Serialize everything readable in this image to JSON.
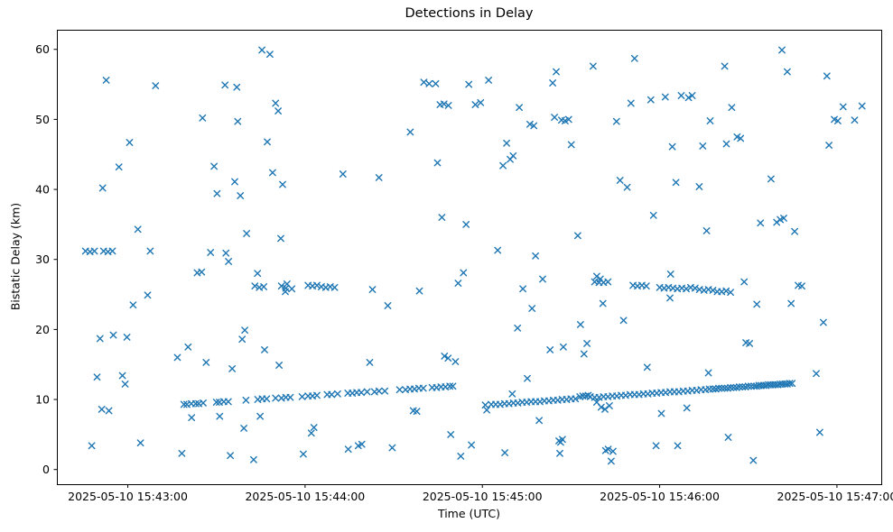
{
  "chart_data": {
    "type": "scatter",
    "title": "Detections in Delay",
    "xlabel": "Time (UTC)",
    "ylabel": "Bistatic Delay (km)",
    "marker": "x",
    "marker_color": "#1f77b4",
    "grid": false,
    "legend": false,
    "x_unit": "seconds after 2025-05-10 15:42:00 UTC",
    "xlim": [
      36,
      315
    ],
    "ylim": [
      -2.1,
      62.8
    ],
    "x_ticks": [
      {
        "value": 60,
        "label": "2025-05-10 15:43:00"
      },
      {
        "value": 120,
        "label": "2025-05-10 15:44:00"
      },
      {
        "value": 180,
        "label": "2025-05-10 15:45:00"
      },
      {
        "value": 240,
        "label": "2025-05-10 15:46:00"
      },
      {
        "value": 300,
        "label": "2025-05-10 15:47:00"
      }
    ],
    "y_ticks": [
      0,
      10,
      20,
      30,
      40,
      50,
      60
    ],
    "points": [
      [
        45.7,
        31.2
      ],
      [
        47.2,
        31.1
      ],
      [
        48.7,
        31.2
      ],
      [
        51.8,
        31.2
      ],
      [
        53.3,
        31.1
      ],
      [
        54.8,
        31.2
      ],
      [
        83.5,
        28.1
      ],
      [
        85,
        28.2
      ],
      [
        103,
        26.2
      ],
      [
        104.5,
        26.0
      ],
      [
        106,
        26.1
      ],
      [
        112,
        26.2
      ],
      [
        113.5,
        25.9
      ],
      [
        115.5,
        25.8
      ],
      [
        121,
        26.3
      ],
      [
        122.5,
        26.2
      ],
      [
        124,
        26.3
      ],
      [
        125.5,
        26.1
      ],
      [
        127,
        26.0
      ],
      [
        128.5,
        26.1
      ],
      [
        130,
        26.0
      ],
      [
        218,
        26.8
      ],
      [
        219.5,
        26.7
      ],
      [
        221,
        26.7
      ],
      [
        222.5,
        26.8
      ],
      [
        231,
        26.3
      ],
      [
        232.5,
        26.2
      ],
      [
        234,
        26.3
      ],
      [
        235.5,
        26.2
      ],
      [
        240,
        26.0
      ],
      [
        241.5,
        25.9
      ],
      [
        243,
        26.0
      ],
      [
        244.5,
        25.9
      ],
      [
        246,
        25.8
      ],
      [
        247.5,
        25.9
      ],
      [
        249,
        25.8
      ],
      [
        250.5,
        26.0
      ],
      [
        252,
        25.9
      ],
      [
        253.5,
        25.7
      ],
      [
        255,
        25.6
      ],
      [
        256.5,
        25.7
      ],
      [
        258,
        25.6
      ],
      [
        259.5,
        25.4
      ],
      [
        261,
        25.4
      ],
      [
        262.5,
        25.5
      ],
      [
        264,
        25.3
      ],
      [
        243.5,
        24.5
      ],
      [
        286.9,
        26.3
      ],
      [
        288.1,
        26.2
      ],
      [
        79,
        9.3
      ],
      [
        80,
        9.3
      ],
      [
        81.5,
        9.4
      ],
      [
        83,
        9.4
      ],
      [
        84,
        9.4
      ],
      [
        85.5,
        9.5
      ],
      [
        90,
        9.6
      ],
      [
        91,
        9.6
      ],
      [
        92.5,
        9.7
      ],
      [
        94,
        9.7
      ],
      [
        100,
        9.9
      ],
      [
        104,
        10.0
      ],
      [
        105.5,
        10.1
      ],
      [
        107,
        10.1
      ],
      [
        110,
        10.2
      ],
      [
        112,
        10.2
      ],
      [
        113.5,
        10.3
      ],
      [
        115,
        10.3
      ],
      [
        119,
        10.4
      ],
      [
        121,
        10.5
      ],
      [
        122.5,
        10.5
      ],
      [
        124,
        10.6
      ],
      [
        127.5,
        10.7
      ],
      [
        129,
        10.7
      ],
      [
        131,
        10.8
      ],
      [
        134.5,
        10.9
      ],
      [
        136,
        10.9
      ],
      [
        137.5,
        11.0
      ],
      [
        139,
        11.0
      ],
      [
        141,
        11.1
      ],
      [
        143.5,
        11.1
      ],
      [
        145,
        11.2
      ],
      [
        147,
        11.2
      ],
      [
        152,
        11.4
      ],
      [
        154,
        11.4
      ],
      [
        155.5,
        11.5
      ],
      [
        157,
        11.5
      ],
      [
        158.5,
        11.6
      ],
      [
        160,
        11.6
      ],
      [
        163,
        11.7
      ],
      [
        164.5,
        11.7
      ],
      [
        166,
        11.8
      ],
      [
        167.5,
        11.8
      ],
      [
        169,
        11.9
      ],
      [
        170,
        11.9
      ],
      [
        181,
        9.2
      ],
      [
        183,
        9.3
      ],
      [
        184.5,
        9.3
      ],
      [
        186,
        9.3
      ],
      [
        187.5,
        9.4
      ],
      [
        189,
        9.4
      ],
      [
        190.5,
        9.5
      ],
      [
        192,
        9.5
      ],
      [
        193.5,
        9.6
      ],
      [
        195,
        9.6
      ],
      [
        196.5,
        9.7
      ],
      [
        198,
        9.7
      ],
      [
        199.5,
        9.7
      ],
      [
        201,
        9.8
      ],
      [
        202.5,
        9.8
      ],
      [
        204,
        9.9
      ],
      [
        205.5,
        9.9
      ],
      [
        207,
        10.0
      ],
      [
        208.5,
        10.0
      ],
      [
        210,
        10.1
      ],
      [
        211.5,
        10.1
      ],
      [
        213,
        10.4
      ],
      [
        214,
        10.5
      ],
      [
        215,
        10.5
      ],
      [
        215.8,
        10.6
      ],
      [
        216.5,
        10.4
      ],
      [
        218,
        10.3
      ],
      [
        219.5,
        10.3
      ],
      [
        221,
        10.4
      ],
      [
        222.5,
        10.4
      ],
      [
        224,
        10.5
      ],
      [
        225.5,
        10.5
      ],
      [
        227,
        10.6
      ],
      [
        228.5,
        10.6
      ],
      [
        230,
        10.7
      ],
      [
        231.5,
        10.7
      ],
      [
        233,
        10.7
      ],
      [
        234.5,
        10.8
      ],
      [
        236,
        10.8
      ],
      [
        237.5,
        10.9
      ],
      [
        239,
        10.9
      ],
      [
        240.5,
        11.0
      ],
      [
        242,
        11.0
      ],
      [
        243.5,
        11.1
      ],
      [
        245,
        11.1
      ],
      [
        246.5,
        11.1
      ],
      [
        248,
        11.2
      ],
      [
        249.5,
        11.2
      ],
      [
        251,
        11.3
      ],
      [
        252.5,
        11.3
      ],
      [
        254,
        11.4
      ],
      [
        255.5,
        11.4
      ],
      [
        256.8,
        11.5
      ],
      [
        258,
        11.5
      ],
      [
        259,
        11.5
      ],
      [
        260,
        11.6
      ],
      [
        261,
        11.6
      ],
      [
        262,
        11.6
      ],
      [
        263,
        11.6
      ],
      [
        264,
        11.7
      ],
      [
        265,
        11.7
      ],
      [
        266,
        11.7
      ],
      [
        267,
        11.8
      ],
      [
        268,
        11.8
      ],
      [
        269,
        11.8
      ],
      [
        270,
        11.9
      ],
      [
        271,
        11.9
      ],
      [
        272,
        11.9
      ],
      [
        272.8,
        11.9
      ],
      [
        273.6,
        12.0
      ],
      [
        274.4,
        12.0
      ],
      [
        275.2,
        12.0
      ],
      [
        276,
        12.0
      ],
      [
        276.8,
        12.1
      ],
      [
        277.6,
        12.1
      ],
      [
        278.4,
        12.1
      ],
      [
        279.2,
        12.1
      ],
      [
        280,
        12.1
      ],
      [
        280.8,
        12.2
      ],
      [
        281.6,
        12.2
      ],
      [
        282.4,
        12.2
      ],
      [
        283.2,
        12.2
      ],
      [
        284,
        12.3
      ],
      [
        284.8,
        12.3
      ],
      [
        181.5,
        8.5
      ],
      [
        190.1,
        10.8
      ],
      [
        218.7,
        9.6
      ],
      [
        220.2,
        8.9
      ],
      [
        221.5,
        8.6
      ],
      [
        223.0,
        9.1
      ],
      [
        47.8,
        3.4
      ],
      [
        49.6,
        13.2
      ],
      [
        50.6,
        18.7
      ],
      [
        51.5,
        40.2
      ],
      [
        52.7,
        55.6
      ],
      [
        51.2,
        8.6
      ],
      [
        53.6,
        8.4
      ],
      [
        55.1,
        19.2
      ],
      [
        57.0,
        43.2
      ],
      [
        58.2,
        13.4
      ],
      [
        59.1,
        12.2
      ],
      [
        59.7,
        18.9
      ],
      [
        60.6,
        46.7
      ],
      [
        61.8,
        23.5
      ],
      [
        63.4,
        34.3
      ],
      [
        64.3,
        3.8
      ],
      [
        66.7,
        24.9
      ],
      [
        67.6,
        31.2
      ],
      [
        69.4,
        54.8
      ],
      [
        76.8,
        16.0
      ],
      [
        78.3,
        2.3
      ],
      [
        80.4,
        17.5
      ],
      [
        81.6,
        7.4
      ],
      [
        85.3,
        50.2
      ],
      [
        86.5,
        15.3
      ],
      [
        88.0,
        31.0
      ],
      [
        89.2,
        43.3
      ],
      [
        90.2,
        39.4
      ],
      [
        91.1,
        7.6
      ],
      [
        92.9,
        54.9
      ],
      [
        93.2,
        30.9
      ],
      [
        94.1,
        29.7
      ],
      [
        94.7,
        2.0
      ],
      [
        95.3,
        14.4
      ],
      [
        96.2,
        41.1
      ],
      [
        96.9,
        54.6
      ],
      [
        97.2,
        49.7
      ],
      [
        98.1,
        39.1
      ],
      [
        98.7,
        18.6
      ],
      [
        99.3,
        5.9
      ],
      [
        99.6,
        19.9
      ],
      [
        100.2,
        33.7
      ],
      [
        102.6,
        1.4
      ],
      [
        103.9,
        28.0
      ],
      [
        104.8,
        7.6
      ],
      [
        105.4,
        59.9
      ],
      [
        106.3,
        17.1
      ],
      [
        107.2,
        46.8
      ],
      [
        108.1,
        59.3
      ],
      [
        109.0,
        42.4
      ],
      [
        110.0,
        52.3
      ],
      [
        110.9,
        51.2
      ],
      [
        111.2,
        14.9
      ],
      [
        111.8,
        33.0
      ],
      [
        112.4,
        40.7
      ],
      [
        113.3,
        25.4
      ],
      [
        113.9,
        26.5
      ],
      [
        119.4,
        2.2
      ],
      [
        122.1,
        5.2
      ],
      [
        123.0,
        6.0
      ],
      [
        132.8,
        42.2
      ],
      [
        134.6,
        2.9
      ],
      [
        138.0,
        3.4
      ],
      [
        139.2,
        3.6
      ],
      [
        141.9,
        15.3
      ],
      [
        142.8,
        25.7
      ],
      [
        145.0,
        41.7
      ],
      [
        148.0,
        23.4
      ],
      [
        149.5,
        3.1
      ],
      [
        155.6,
        48.2
      ],
      [
        156.6,
        8.4
      ],
      [
        157.8,
        8.3
      ],
      [
        158.7,
        25.5
      ],
      [
        160.2,
        55.3
      ],
      [
        162.0,
        55.1
      ],
      [
        164.2,
        55.1
      ],
      [
        164.8,
        43.8
      ],
      [
        165.7,
        52.1
      ],
      [
        167.0,
        52.2
      ],
      [
        168.5,
        52.0
      ],
      [
        166.3,
        36.0
      ],
      [
        167.2,
        16.2
      ],
      [
        168.4,
        15.9
      ],
      [
        169.3,
        5.0
      ],
      [
        170.9,
        15.4
      ],
      [
        171.8,
        26.6
      ],
      [
        172.7,
        1.9
      ],
      [
        173.6,
        28.1
      ],
      [
        174.5,
        35.0
      ],
      [
        175.4,
        55.0
      ],
      [
        176.3,
        3.5
      ],
      [
        177.6,
        52.1
      ],
      [
        179.4,
        52.4
      ],
      [
        182.1,
        55.6
      ],
      [
        185.2,
        31.3
      ],
      [
        187.0,
        43.4
      ],
      [
        188.2,
        46.6
      ],
      [
        189.4,
        44.3
      ],
      [
        190.4,
        44.8
      ],
      [
        187.6,
        2.4
      ],
      [
        191.9,
        20.2
      ],
      [
        192.5,
        51.7
      ],
      [
        193.7,
        25.8
      ],
      [
        195.2,
        13.0
      ],
      [
        196.1,
        49.3
      ],
      [
        197.4,
        49.1
      ],
      [
        196.8,
        23.0
      ],
      [
        198.0,
        30.5
      ],
      [
        199.2,
        7.0
      ],
      [
        200.4,
        27.2
      ],
      [
        202.9,
        17.1
      ],
      [
        203.8,
        55.2
      ],
      [
        204.4,
        50.3
      ],
      [
        205.0,
        56.8
      ],
      [
        205.9,
        4.1
      ],
      [
        206.5,
        3.9
      ],
      [
        207.1,
        4.3
      ],
      [
        206.2,
        2.3
      ],
      [
        206.8,
        49.9
      ],
      [
        208.0,
        49.8
      ],
      [
        209.2,
        50.0
      ],
      [
        207.4,
        17.5
      ],
      [
        210.1,
        46.4
      ],
      [
        212.3,
        33.4
      ],
      [
        213.2,
        20.7
      ],
      [
        214.4,
        16.5
      ],
      [
        215.4,
        18.0
      ],
      [
        217.5,
        57.6
      ],
      [
        218.7,
        27.6
      ],
      [
        219.9,
        27.2
      ],
      [
        220.8,
        23.7
      ],
      [
        221.7,
        2.7
      ],
      [
        222.6,
        2.9
      ],
      [
        223.6,
        1.2
      ],
      [
        224.2,
        2.6
      ],
      [
        225.4,
        49.7
      ],
      [
        226.6,
        41.3
      ],
      [
        227.8,
        21.3
      ],
      [
        229.0,
        40.3
      ],
      [
        230.3,
        52.3
      ],
      [
        231.5,
        58.7
      ],
      [
        235.8,
        14.6
      ],
      [
        237.0,
        52.8
      ],
      [
        237.9,
        36.3
      ],
      [
        238.8,
        3.4
      ],
      [
        240.6,
        8.0
      ],
      [
        241.9,
        53.2
      ],
      [
        243.7,
        27.9
      ],
      [
        244.3,
        46.1
      ],
      [
        245.5,
        41.0
      ],
      [
        246.1,
        3.4
      ],
      [
        247.3,
        53.4
      ],
      [
        249.2,
        8.8
      ],
      [
        249.8,
        53.1
      ],
      [
        251.0,
        53.4
      ],
      [
        253.4,
        40.4
      ],
      [
        254.6,
        46.2
      ],
      [
        255.9,
        34.1
      ],
      [
        256.5,
        13.8
      ],
      [
        257.1,
        49.8
      ],
      [
        262.0,
        57.6
      ],
      [
        262.6,
        46.5
      ],
      [
        263.2,
        4.6
      ],
      [
        264.4,
        51.7
      ],
      [
        266.2,
        47.5
      ],
      [
        267.4,
        47.3
      ],
      [
        268.6,
        26.8
      ],
      [
        269.2,
        18.1
      ],
      [
        270.4,
        18.0
      ],
      [
        271.7,
        1.3
      ],
      [
        272.9,
        23.6
      ],
      [
        274.1,
        35.2
      ],
      [
        277.7,
        41.5
      ],
      [
        279.6,
        35.3
      ],
      [
        280.8,
        35.7
      ],
      [
        282.0,
        35.9
      ],
      [
        281.4,
        59.9
      ],
      [
        283.2,
        56.8
      ],
      [
        284.5,
        23.7
      ],
      [
        285.7,
        34.0
      ],
      [
        293.0,
        13.7
      ],
      [
        294.2,
        5.3
      ],
      [
        295.4,
        21.0
      ],
      [
        296.6,
        56.2
      ],
      [
        297.3,
        46.3
      ],
      [
        299.1,
        50.0
      ],
      [
        300.3,
        49.8
      ],
      [
        302.1,
        51.8
      ],
      [
        306.0,
        49.9
      ],
      [
        308.5,
        51.9
      ]
    ]
  }
}
